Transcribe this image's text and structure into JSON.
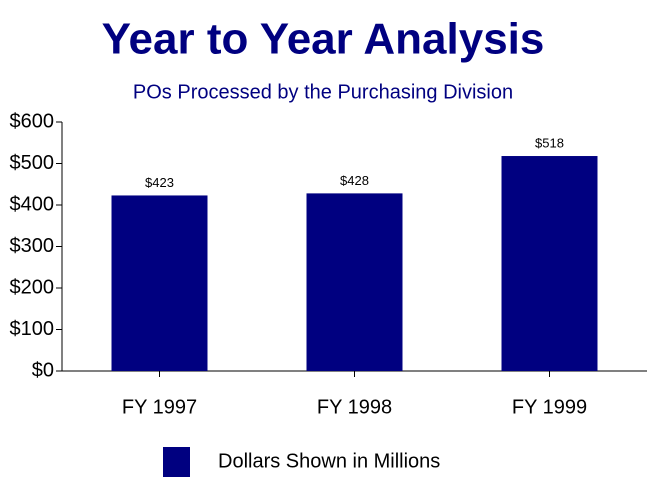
{
  "chart_data": {
    "type": "bar",
    "title": "Year to Year Analysis",
    "subtitle": "POs Processed by the Purchasing Division",
    "categories": [
      "FY 1997",
      "FY 1998",
      "FY 1999"
    ],
    "series": [
      {
        "name": "Dollars Shown in Millions",
        "color": "#000080",
        "values": [
          423,
          428,
          518
        ],
        "value_labels": [
          "$423",
          "$428",
          "$518"
        ]
      }
    ],
    "ylim": [
      0,
      600
    ],
    "yticks": [
      {
        "value": 0,
        "label": "$0"
      },
      {
        "value": 100,
        "label": "$100"
      },
      {
        "value": 200,
        "label": "$200"
      },
      {
        "value": 300,
        "label": "$300"
      },
      {
        "value": 400,
        "label": "$400"
      },
      {
        "value": 500,
        "label": "$500"
      },
      {
        "value": 600,
        "label": "$600"
      }
    ],
    "grid": false,
    "legend": "bottom"
  }
}
